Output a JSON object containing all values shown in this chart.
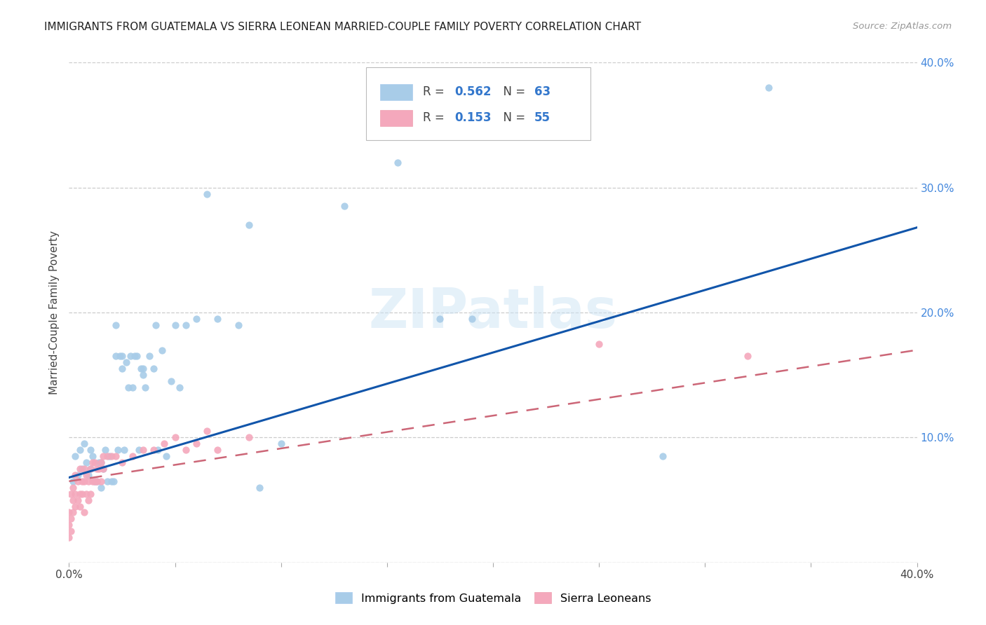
{
  "title": "IMMIGRANTS FROM GUATEMALA VS SIERRA LEONEAN MARRIED-COUPLE FAMILY POVERTY CORRELATION CHART",
  "source": "Source: ZipAtlas.com",
  "ylabel_label": "Married-Couple Family Poverty",
  "xlim": [
    0.0,
    0.4
  ],
  "ylim": [
    0.0,
    0.4
  ],
  "watermark": "ZIPatlas",
  "blue_color": "#a8cce8",
  "pink_color": "#f4a8bc",
  "blue_line_color": "#1155aa",
  "pink_line_color": "#cc6677",
  "guatemala_x": [
    0.002,
    0.003,
    0.004,
    0.005,
    0.006,
    0.007,
    0.008,
    0.009,
    0.01,
    0.01,
    0.011,
    0.012,
    0.013,
    0.014,
    0.015,
    0.015,
    0.016,
    0.017,
    0.018,
    0.019,
    0.02,
    0.021,
    0.022,
    0.022,
    0.023,
    0.024,
    0.025,
    0.025,
    0.026,
    0.027,
    0.028,
    0.029,
    0.03,
    0.031,
    0.032,
    0.033,
    0.034,
    0.035,
    0.035,
    0.036,
    0.038,
    0.04,
    0.041,
    0.042,
    0.044,
    0.046,
    0.048,
    0.05,
    0.052,
    0.055,
    0.06,
    0.065,
    0.07,
    0.08,
    0.085,
    0.09,
    0.1,
    0.13,
    0.155,
    0.175,
    0.19,
    0.28,
    0.33
  ],
  "guatemala_y": [
    0.065,
    0.085,
    0.07,
    0.09,
    0.075,
    0.095,
    0.08,
    0.07,
    0.09,
    0.075,
    0.085,
    0.065,
    0.065,
    0.08,
    0.06,
    0.08,
    0.075,
    0.09,
    0.065,
    0.085,
    0.065,
    0.065,
    0.165,
    0.19,
    0.09,
    0.165,
    0.165,
    0.155,
    0.09,
    0.16,
    0.14,
    0.165,
    0.14,
    0.165,
    0.165,
    0.09,
    0.155,
    0.155,
    0.15,
    0.14,
    0.165,
    0.155,
    0.19,
    0.09,
    0.17,
    0.085,
    0.145,
    0.19,
    0.14,
    0.19,
    0.195,
    0.295,
    0.195,
    0.19,
    0.27,
    0.06,
    0.095,
    0.285,
    0.32,
    0.195,
    0.195,
    0.085,
    0.38
  ],
  "sierraleone_x": [
    0.0,
    0.0,
    0.0,
    0.001,
    0.001,
    0.001,
    0.002,
    0.002,
    0.002,
    0.003,
    0.003,
    0.003,
    0.004,
    0.004,
    0.005,
    0.005,
    0.005,
    0.006,
    0.006,
    0.007,
    0.007,
    0.007,
    0.008,
    0.008,
    0.009,
    0.009,
    0.01,
    0.01,
    0.011,
    0.011,
    0.012,
    0.012,
    0.013,
    0.013,
    0.014,
    0.015,
    0.015,
    0.016,
    0.016,
    0.018,
    0.02,
    0.022,
    0.025,
    0.03,
    0.035,
    0.04,
    0.045,
    0.05,
    0.055,
    0.06,
    0.065,
    0.07,
    0.085,
    0.25,
    0.32
  ],
  "sierraleone_y": [
    0.02,
    0.03,
    0.04,
    0.025,
    0.035,
    0.055,
    0.04,
    0.05,
    0.06,
    0.045,
    0.055,
    0.07,
    0.05,
    0.065,
    0.045,
    0.055,
    0.075,
    0.055,
    0.065,
    0.04,
    0.065,
    0.075,
    0.055,
    0.07,
    0.05,
    0.065,
    0.055,
    0.075,
    0.065,
    0.08,
    0.065,
    0.08,
    0.065,
    0.075,
    0.075,
    0.065,
    0.08,
    0.075,
    0.085,
    0.085,
    0.085,
    0.085,
    0.08,
    0.085,
    0.09,
    0.09,
    0.095,
    0.1,
    0.09,
    0.095,
    0.105,
    0.09,
    0.1,
    0.175,
    0.165
  ],
  "blue_trendline_x": [
    0.0,
    0.4
  ],
  "blue_trendline_y": [
    0.068,
    0.268
  ],
  "pink_trendline_x": [
    0.0,
    0.4
  ],
  "pink_trendline_y": [
    0.065,
    0.17
  ]
}
